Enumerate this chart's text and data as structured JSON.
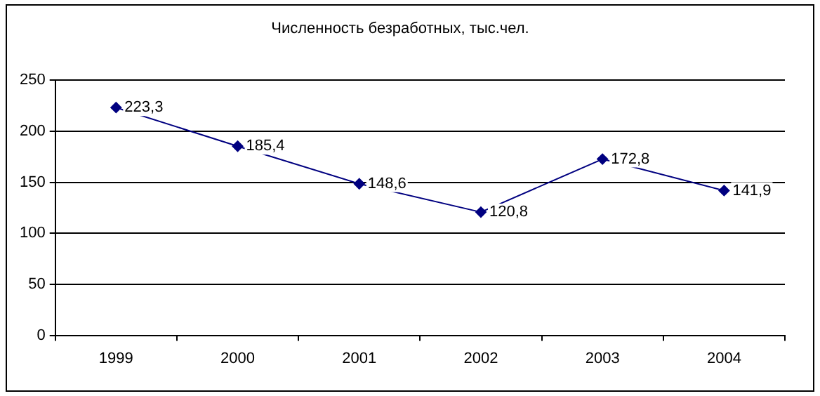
{
  "chart_data": {
    "type": "line",
    "title": "Численность безработных, тыс.чел.",
    "categories": [
      "1999",
      "2000",
      "2001",
      "2002",
      "2003",
      "2004"
    ],
    "series": [
      {
        "color": "#000080",
        "values": [
          223.3,
          185.4,
          148.6,
          120.8,
          172.8,
          141.9
        ],
        "value_labels": [
          "223,3",
          "185,4",
          "148,6",
          "120,8",
          "172,8",
          "141,9"
        ]
      }
    ],
    "ylim": [
      0,
      250
    ],
    "yticks": [
      0,
      50,
      100,
      150,
      200,
      250
    ],
    "grid": "y",
    "legend": false,
    "marker": "diamond",
    "line_style": "solid"
  }
}
